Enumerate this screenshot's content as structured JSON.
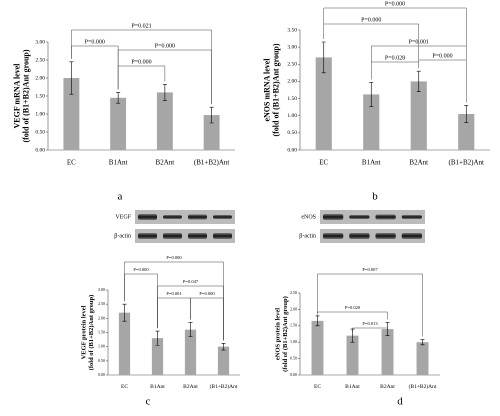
{
  "chart_data": [
    {
      "type": "bar",
      "panel_label": "a",
      "y_label": [
        "VEGF mRNA level",
        "(fold of (B1+B2)Ant group)"
      ],
      "categories": [
        "EC",
        "B1Ant",
        "B2Ant",
        "(B1+B2)Ant"
      ],
      "values": [
        2.0,
        1.45,
        1.6,
        0.97
      ],
      "errors": [
        0.45,
        0.15,
        0.22,
        0.22
      ],
      "color": "#a6a6a6",
      "ylim": [
        0,
        3
      ],
      "yticks": [
        {
          "value": 0,
          "label": "0.00"
        },
        {
          "value": 0.5,
          "label": "0.50"
        },
        {
          "value": 1,
          "label": "1.00"
        },
        {
          "value": 1.5,
          "label": "1.50"
        },
        {
          "value": 2,
          "label": "2.00"
        },
        {
          "value": 2.5,
          "label": "2.50"
        },
        {
          "value": 3,
          "label": "3.00"
        }
      ],
      "annotations": [
        "P=0.021",
        "P=0.000",
        "P=0.000",
        "P=0.000"
      ]
    },
    {
      "type": "bar",
      "panel_label": "b",
      "y_label": [
        "eNOS mRNA level",
        "(fold of (B1+B2)Ant group)"
      ],
      "categories": [
        "EC",
        "B1Ant",
        "B2Ant",
        "(B1+B2)Ant"
      ],
      "values": [
        2.7,
        1.62,
        2.0,
        1.05
      ],
      "errors": [
        0.45,
        0.35,
        0.3,
        0.25
      ],
      "color": "#a6a6a6",
      "ylim": [
        0,
        3.5
      ],
      "yticks": [
        {
          "value": 0,
          "label": "0.00"
        },
        {
          "value": 0.5,
          "label": "0.50"
        },
        {
          "value": 1,
          "label": "1.00"
        },
        {
          "value": 1.5,
          "label": "1.50"
        },
        {
          "value": 2,
          "label": "2.00"
        },
        {
          "value": 2.5,
          "label": "2.50"
        },
        {
          "value": 3,
          "label": "3.00"
        },
        {
          "value": 3.5,
          "label": "3.50"
        }
      ],
      "annotations": [
        "P=0.000",
        "P=0.000",
        "P=0.001",
        "P=0.028",
        "P=0.000"
      ]
    },
    {
      "type": "bar",
      "panel_label": "c",
      "y_label": [
        "VEGF protein level",
        "(fold of (B1+B2)Ant group)"
      ],
      "blot_labels": [
        "VEGF",
        "β-actin"
      ],
      "categories": [
        "EC",
        "B1Ant",
        "B2Ant",
        "(B1+B2)Ant"
      ],
      "values": [
        2.2,
        1.3,
        1.6,
        1.0
      ],
      "errors": [
        0.3,
        0.25,
        0.25,
        0.12
      ],
      "color": "#a6a6a6",
      "ylim": [
        0,
        3
      ],
      "yticks": [
        {
          "value": 0,
          "label": "0.00"
        },
        {
          "value": 0.5,
          "label": "0.50"
        },
        {
          "value": 1,
          "label": "1.00"
        },
        {
          "value": 1.5,
          "label": "1.50"
        },
        {
          "value": 2,
          "label": "2.00"
        },
        {
          "value": 2.5,
          "label": "2.50"
        },
        {
          "value": 3,
          "label": "3.00"
        }
      ],
      "annotations": [
        "P=0.000",
        "P=0.000",
        "P=0.047",
        "P=0.001",
        "P=0.000"
      ]
    },
    {
      "type": "bar",
      "panel_label": "d",
      "y_label": [
        "eNOS protein level",
        "(fold of (B1+B2)Ant group)"
      ],
      "blot_labels": [
        "eNOS",
        "β-actin"
      ],
      "categories": [
        "EC",
        "B1Ant",
        "B2Ant",
        "(B1+B2)Ant"
      ],
      "values": [
        1.65,
        1.2,
        1.4,
        1.0
      ],
      "errors": [
        0.15,
        0.2,
        0.2,
        0.08
      ],
      "color": "#a6a6a6",
      "ylim": [
        0,
        2.5
      ],
      "yticks": [
        {
          "value": 0,
          "label": "0.00"
        },
        {
          "value": 0.5,
          "label": "0.50"
        },
        {
          "value": 1,
          "label": "1.00"
        },
        {
          "value": 1.5,
          "label": "1.50"
        },
        {
          "value": 2,
          "label": "2.00"
        },
        {
          "value": 2.5,
          "label": "2.50"
        }
      ],
      "annotations": [
        "P=0.007",
        "P=0.020",
        "P=0.013"
      ]
    }
  ]
}
